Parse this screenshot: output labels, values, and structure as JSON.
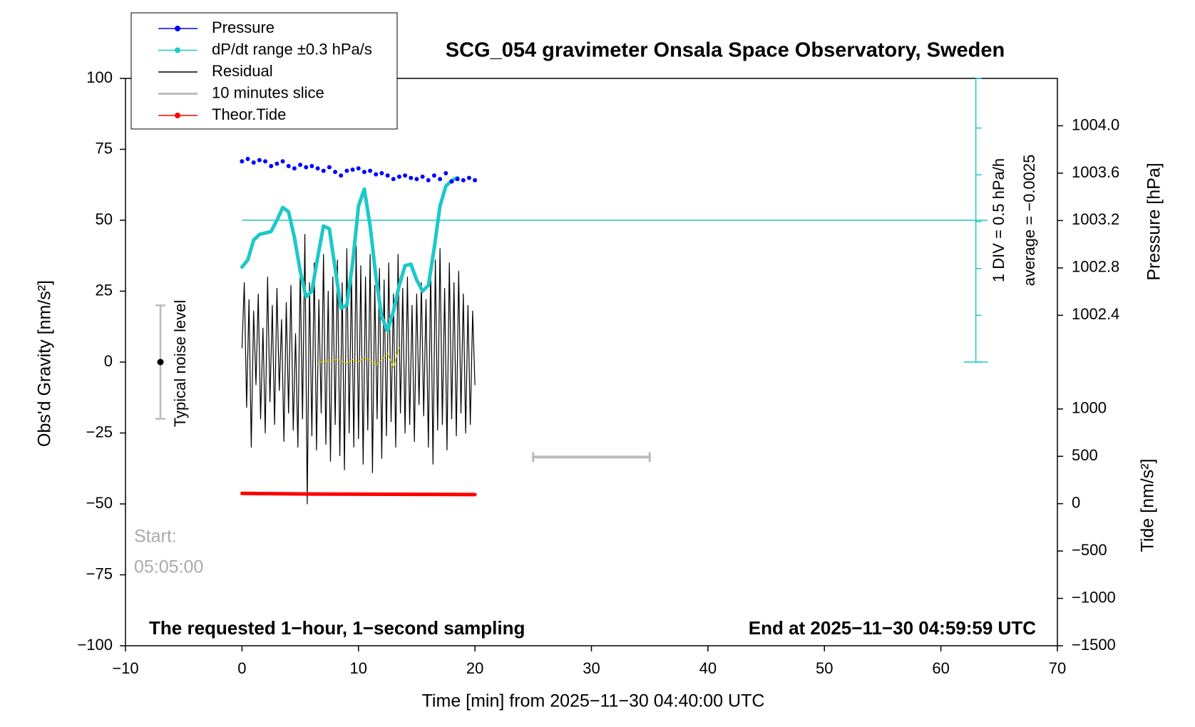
{
  "chart_data": {
    "type": "line",
    "title": "SCG_054 gravimeter Onsala Space Observatory, Sweden",
    "x_label": "Time [min] from 2025−11−30 04:40:00 UTC",
    "y_label": "Obs'd Gravity [nm/s²]",
    "y2_label": "Pressure [hPa]",
    "y3_label": "Tide [nm/s²]",
    "xlim": [
      -10,
      70
    ],
    "xticks": [
      {
        "value": -10,
        "label": "−10"
      },
      0,
      10,
      20,
      30,
      40,
      50,
      60,
      70
    ],
    "ylim": [
      -100,
      100
    ],
    "yticks": [
      {
        "value": -100,
        "label": "−100"
      },
      {
        "value": -75,
        "label": "−75"
      },
      {
        "value": -50,
        "label": "−50"
      },
      {
        "value": -25,
        "label": "−25"
      },
      0,
      25,
      50,
      75,
      100
    ],
    "y2lim": [
      999.61,
      1004.4
    ],
    "y2ticks": [
      1002.4,
      1002.8,
      1003.2,
      1003.6,
      {
        "value": 1004,
        "label": "1004.0"
      }
    ],
    "y3lim": [
      -1500,
      4490
    ],
    "y3ticks": [
      {
        "value": -1500,
        "label": "−1500"
      },
      {
        "value": -1000,
        "label": "−1000"
      },
      {
        "value": -500,
        "label": "−500"
      },
      0,
      500,
      1000
    ],
    "series": [
      {
        "name": "Pressure",
        "color": "#0000ff",
        "style": "dots",
        "marker": true,
        "axis": "y2",
        "x": [
          0,
          0.5,
          1,
          1.5,
          2,
          2.5,
          3,
          3.5,
          4,
          4.5,
          5,
          5.5,
          6,
          6.5,
          7,
          7.5,
          8,
          8.5,
          9,
          9.5,
          10,
          10.5,
          11,
          11.5,
          12,
          12.5,
          13,
          13.5,
          14,
          14.5,
          15,
          15.5,
          16,
          16.5,
          17,
          17.5,
          18,
          18.5,
          19,
          19.5,
          20
        ],
        "values": [
          1003.7,
          1003.72,
          1003.69,
          1003.71,
          1003.7,
          1003.66,
          1003.68,
          1003.7,
          1003.66,
          1003.64,
          1003.67,
          1003.65,
          1003.66,
          1003.64,
          1003.62,
          1003.65,
          1003.61,
          1003.58,
          1003.62,
          1003.63,
          1003.64,
          1003.61,
          1003.62,
          1003.59,
          1003.6,
          1003.58,
          1003.55,
          1003.57,
          1003.58,
          1003.56,
          1003.55,
          1003.57,
          1003.54,
          1003.58,
          1003.55,
          1003.6,
          1003.53,
          1003.55,
          1003.54,
          1003.56,
          1003.54
        ]
      },
      {
        "name": "dP/dt range ±0.3 hPa/s",
        "color": "#1ec8c8",
        "style": "thick",
        "marker": true,
        "x": [
          0,
          0.5,
          1,
          1.5,
          2,
          2.5,
          3,
          3.5,
          4,
          4.5,
          5,
          5.5,
          6,
          6.5,
          7,
          7.5,
          8,
          8.5,
          9,
          9.5,
          10,
          10.5,
          11,
          11.5,
          12,
          12.5,
          13,
          13.5,
          14,
          14.5,
          15,
          15.5,
          16,
          16.5,
          17,
          17.5,
          18,
          18.5
        ],
        "values": [
          33.5,
          36,
          43,
          45,
          45.5,
          46,
          50,
          54.5,
          53,
          44,
          32,
          23,
          25,
          37,
          48,
          47,
          33,
          19,
          20,
          35,
          55,
          61,
          48,
          30,
          16,
          11,
          18,
          27,
          34,
          34.5,
          29,
          25,
          27,
          40,
          55,
          62,
          64,
          65
        ]
      },
      {
        "name": "Residual",
        "color": "#000000",
        "style": "line",
        "marker": false,
        "x": [
          0,
          0.2,
          0.4,
          0.6,
          0.8,
          1,
          1.2,
          1.4,
          1.6,
          1.8,
          2,
          2.2,
          2.4,
          2.6,
          2.8,
          3,
          3.2,
          3.4,
          3.6,
          3.8,
          4,
          4.2,
          4.4,
          4.6,
          4.8,
          5,
          5.2,
          5.4,
          5.6,
          5.8,
          6,
          6.2,
          6.4,
          6.6,
          6.8,
          7,
          7.2,
          7.4,
          7.6,
          7.8,
          8,
          8.2,
          8.4,
          8.6,
          8.8,
          9,
          9.2,
          9.4,
          9.6,
          9.8,
          10,
          10.2,
          10.4,
          10.6,
          10.8,
          11,
          11.2,
          11.4,
          11.6,
          11.8,
          12,
          12.2,
          12.4,
          12.6,
          12.8,
          13,
          13.2,
          13.4,
          13.6,
          13.8,
          14,
          14.2,
          14.4,
          14.6,
          14.8,
          15,
          15.2,
          15.4,
          15.6,
          15.8,
          16,
          16.2,
          16.4,
          16.6,
          16.8,
          17,
          17.2,
          17.4,
          17.6,
          17.8,
          18,
          18.2,
          18.4,
          18.6,
          18.8,
          19,
          19.2,
          19.4,
          19.6,
          19.8,
          20
        ],
        "values": [
          5,
          28,
          -16,
          22,
          -30,
          18,
          -8,
          24,
          -20,
          12,
          -25,
          30,
          -14,
          20,
          -22,
          26,
          -10,
          15,
          -28,
          21,
          -18,
          27,
          -24,
          10,
          -30,
          33,
          -20,
          45,
          -50,
          28,
          -26,
          35,
          -31,
          22,
          -18,
          38,
          -29,
          25,
          -35,
          30,
          -22,
          36,
          -33,
          28,
          -38,
          40,
          -25,
          32,
          -30,
          41,
          -27,
          34,
          -36,
          30,
          -24,
          38,
          -39,
          27,
          -20,
          33,
          -34,
          29,
          -26,
          35,
          -21,
          24,
          -30,
          38,
          -18,
          26,
          -25,
          30,
          -22,
          20,
          -28,
          24,
          -15,
          28,
          -19,
          22,
          -30,
          33,
          -36,
          36,
          -24,
          40,
          -22,
          26,
          -31,
          35,
          -20,
          28,
          -26,
          32,
          -18,
          24,
          -25,
          20,
          -22,
          18,
          -8
        ]
      },
      {
        "name": "10 minutes slice",
        "color": "#bbbbbb",
        "style": "bar",
        "marker": false,
        "x": [
          25,
          35
        ],
        "values": [
          -33.5,
          -33.5
        ]
      },
      {
        "name": "Theor.Tide",
        "color": "#ff0000",
        "style": "thick",
        "marker": true,
        "axis": "y3",
        "x": [
          0,
          6,
          20
        ],
        "values": [
          108,
          102,
          96
        ]
      },
      {
        "color": "#c8c800",
        "style": "line",
        "x": [
          6.5,
          7,
          7.5,
          8,
          8.5,
          9,
          9.5,
          10,
          10.5,
          11,
          11.5,
          12,
          12.5,
          13,
          13.5
        ],
        "values": [
          -0.5,
          0.5,
          0,
          1,
          0.5,
          -0.5,
          1,
          0,
          1.5,
          0.5,
          -1,
          1,
          3,
          -2,
          5
        ]
      }
    ],
    "reference_line": {
      "color": "#1ec8c8",
      "value": 50,
      "xlim": [
        0,
        64
      ]
    },
    "scale_bar": {
      "color": "#1ec8c8",
      "x": 63,
      "ylim": [
        0,
        100
      ],
      "ticks": [
        0,
        16.5,
        33,
        49.5,
        66,
        82.5,
        100
      ],
      "label": "1 DIV = 0.5 hPa/h",
      "average": "average = −0.0025"
    },
    "noise_bar": {
      "label": "Typical noise level",
      "x": -7,
      "values": [
        -20,
        0,
        20
      ]
    },
    "start_label": "Start:",
    "start_time": "05:05:00",
    "footer_left": "The requested 1−hour, 1−second sampling",
    "footer_right": "End at 2025−11−30 04:59:59 UTC"
  }
}
